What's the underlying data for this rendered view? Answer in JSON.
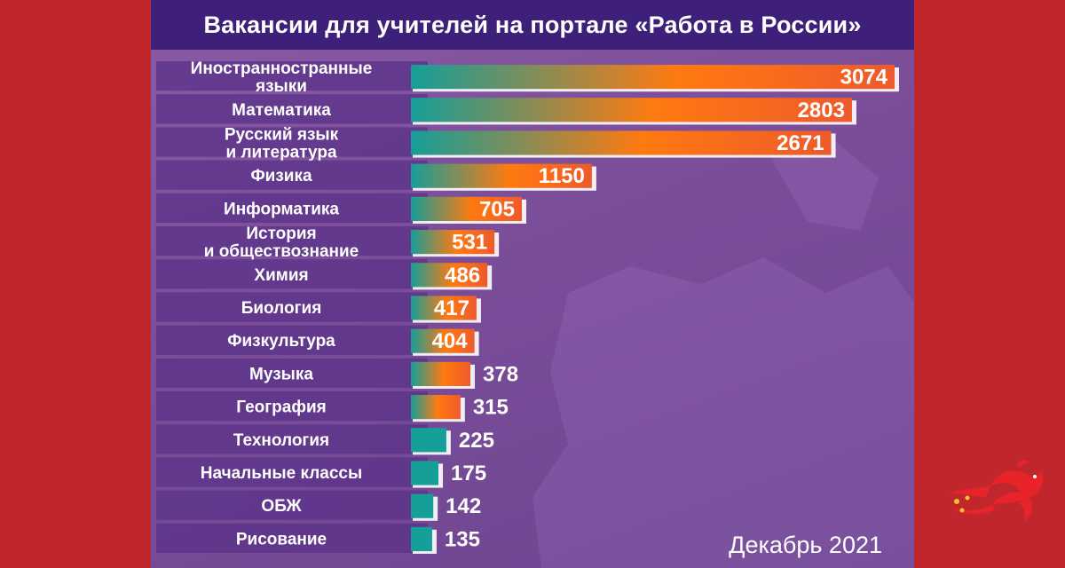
{
  "page": {
    "title": "Вакансии для учителей на портале «Работа в России»",
    "date_note": "Декабрь 2021"
  },
  "colors": {
    "background": "#c0272d",
    "title_bar": "#3e1f7a",
    "bar_start": "#169e98",
    "bar_mid": "#ff7a10",
    "bar_end": "#ee5a2c",
    "label_box": "#5a3288"
  },
  "icons": {
    "logo": "firebird-icon"
  },
  "chart_data": {
    "type": "bar",
    "orientation": "horizontal",
    "title": "Вакансии для учителей на портале «Работа в России»",
    "xlabel": "",
    "ylabel": "",
    "xlim": [
      0,
      3074
    ],
    "categories": [
      [
        "Иностранностранные",
        "языки"
      ],
      [
        "Математика"
      ],
      [
        "Русский язык",
        "и литература"
      ],
      [
        "Физика"
      ],
      [
        "Информатика"
      ],
      [
        "История",
        "и обществознание"
      ],
      [
        "Химия"
      ],
      [
        "Биология"
      ],
      [
        "Физкультура"
      ],
      [
        "Музыка"
      ],
      [
        "География"
      ],
      [
        "Технология"
      ],
      [
        "Начальные классы"
      ],
      [
        "ОБЖ"
      ],
      [
        "Рисование"
      ]
    ],
    "values": [
      3074,
      2803,
      2671,
      1150,
      705,
      531,
      486,
      417,
      404,
      378,
      315,
      225,
      175,
      142,
      135
    ],
    "annotation": "Декабрь 2021"
  }
}
